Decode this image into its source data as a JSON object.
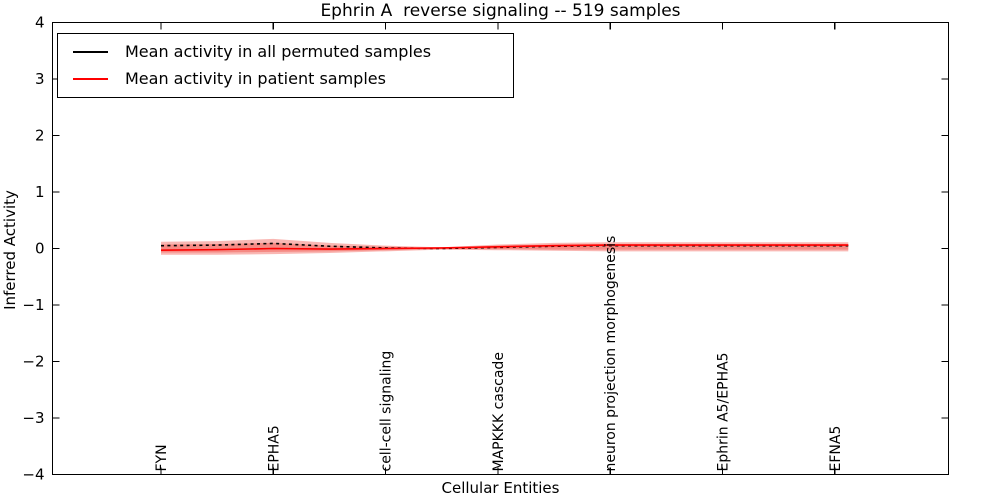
{
  "figure": {
    "title": "Ephrin A  reverse signaling -- 519 samples",
    "xlabel": "Cellular Entities",
    "ylabel": "Inferred Activity"
  },
  "legend": {
    "entries": [
      {
        "label": "Mean activity in all permuted samples",
        "color": "#000000"
      },
      {
        "label": "Mean activity in patient samples",
        "color": "#ff0000"
      }
    ]
  },
  "chart_data": {
    "type": "line",
    "title": "Ephrin A  reverse signaling -- 519 samples",
    "xlabel": "Cellular Entities",
    "ylabel": "Inferred Activity",
    "ylim": [
      -4,
      4
    ],
    "yticks": [
      {
        "value": 4,
        "label": "4"
      },
      {
        "value": 3,
        "label": "3"
      },
      {
        "value": 2,
        "label": "2"
      },
      {
        "value": 1,
        "label": "1"
      },
      {
        "value": 0,
        "label": "0"
      },
      {
        "value": -1,
        "label": "−1"
      },
      {
        "value": -2,
        "label": "−2"
      },
      {
        "value": -3,
        "label": "−3"
      },
      {
        "value": -4,
        "label": "−4"
      }
    ],
    "categories": [
      "FYN",
      "EPHA5",
      "cell-cell signaling",
      "MAPKKK cascade",
      "neuron projection morphogenesis",
      "Ephrin A5/EPHA5",
      "EFNA5"
    ],
    "x": [
      0,
      0.5,
      1,
      1.5,
      2,
      2.5,
      3,
      3.5,
      4,
      4.5,
      5,
      5.5,
      6,
      6.12
    ],
    "series": [
      {
        "name": "Mean activity in all permuted samples",
        "color": "#000000",
        "style": "dashed",
        "values": [
          0.05,
          0.06,
          0.09,
          0.04,
          0.01,
          0.0,
          0.02,
          0.04,
          0.05,
          0.05,
          0.05,
          0.05,
          0.05,
          0.05
        ]
      },
      {
        "name": "Mean activity in patient samples",
        "color": "#ff0000",
        "style": "solid",
        "values": [
          -0.03,
          -0.02,
          0.0,
          -0.01,
          0.0,
          0.01,
          0.03,
          0.05,
          0.06,
          0.06,
          0.06,
          0.06,
          0.06,
          0.06
        ],
        "band_color": "#f04138",
        "band_outer": {
          "upper": [
            0.12,
            0.13,
            0.17,
            0.1,
            0.05,
            0.02,
            0.07,
            0.1,
            0.11,
            0.11,
            0.11,
            0.11,
            0.11,
            0.11
          ],
          "lower": [
            -0.11,
            -0.11,
            -0.1,
            -0.08,
            -0.05,
            -0.02,
            -0.03,
            -0.04,
            -0.05,
            -0.05,
            -0.05,
            -0.05,
            -0.05,
            -0.05
          ]
        },
        "band_inner": {
          "upper": [
            0.07,
            0.08,
            0.1,
            0.05,
            0.03,
            0.01,
            0.05,
            0.07,
            0.08,
            0.08,
            0.08,
            0.08,
            0.08,
            0.08
          ],
          "lower": [
            -0.07,
            -0.07,
            -0.06,
            -0.05,
            -0.03,
            -0.01,
            -0.01,
            -0.02,
            -0.02,
            -0.02,
            -0.02,
            -0.02,
            -0.02,
            -0.02
          ]
        }
      }
    ],
    "legend_position": "upper left",
    "grid": false
  }
}
